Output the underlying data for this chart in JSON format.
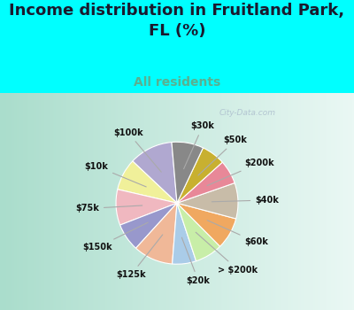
{
  "title": "Income distribution in Fruitland Park,\nFL (%)",
  "subtitle": "All residents",
  "labels": [
    "$100k",
    "$10k",
    "$75k",
    "$150k",
    "$125k",
    "$20k",
    "> $200k",
    "$60k",
    "$40k",
    "$200k",
    "$50k",
    "$30k"
  ],
  "sizes": [
    11,
    8,
    9,
    7,
    10,
    6,
    7,
    8,
    9,
    6,
    6,
    8
  ],
  "colors": [
    "#b0a8d0",
    "#f0f09a",
    "#f0b8c0",
    "#9898cc",
    "#f0b898",
    "#aacce8",
    "#c8eea8",
    "#f0a860",
    "#c8bca8",
    "#e88898",
    "#c8b030",
    "#888888"
  ],
  "background_top": "#00ffff",
  "background_chart_left": "#b8e8d8",
  "background_chart_right": "#f0faf8",
  "title_color": "#1a1a2e",
  "subtitle_color": "#5ab090",
  "title_fontsize": 13,
  "subtitle_fontsize": 10,
  "label_fontsize": 7,
  "watermark": "City-Data.com",
  "startangle": 95
}
